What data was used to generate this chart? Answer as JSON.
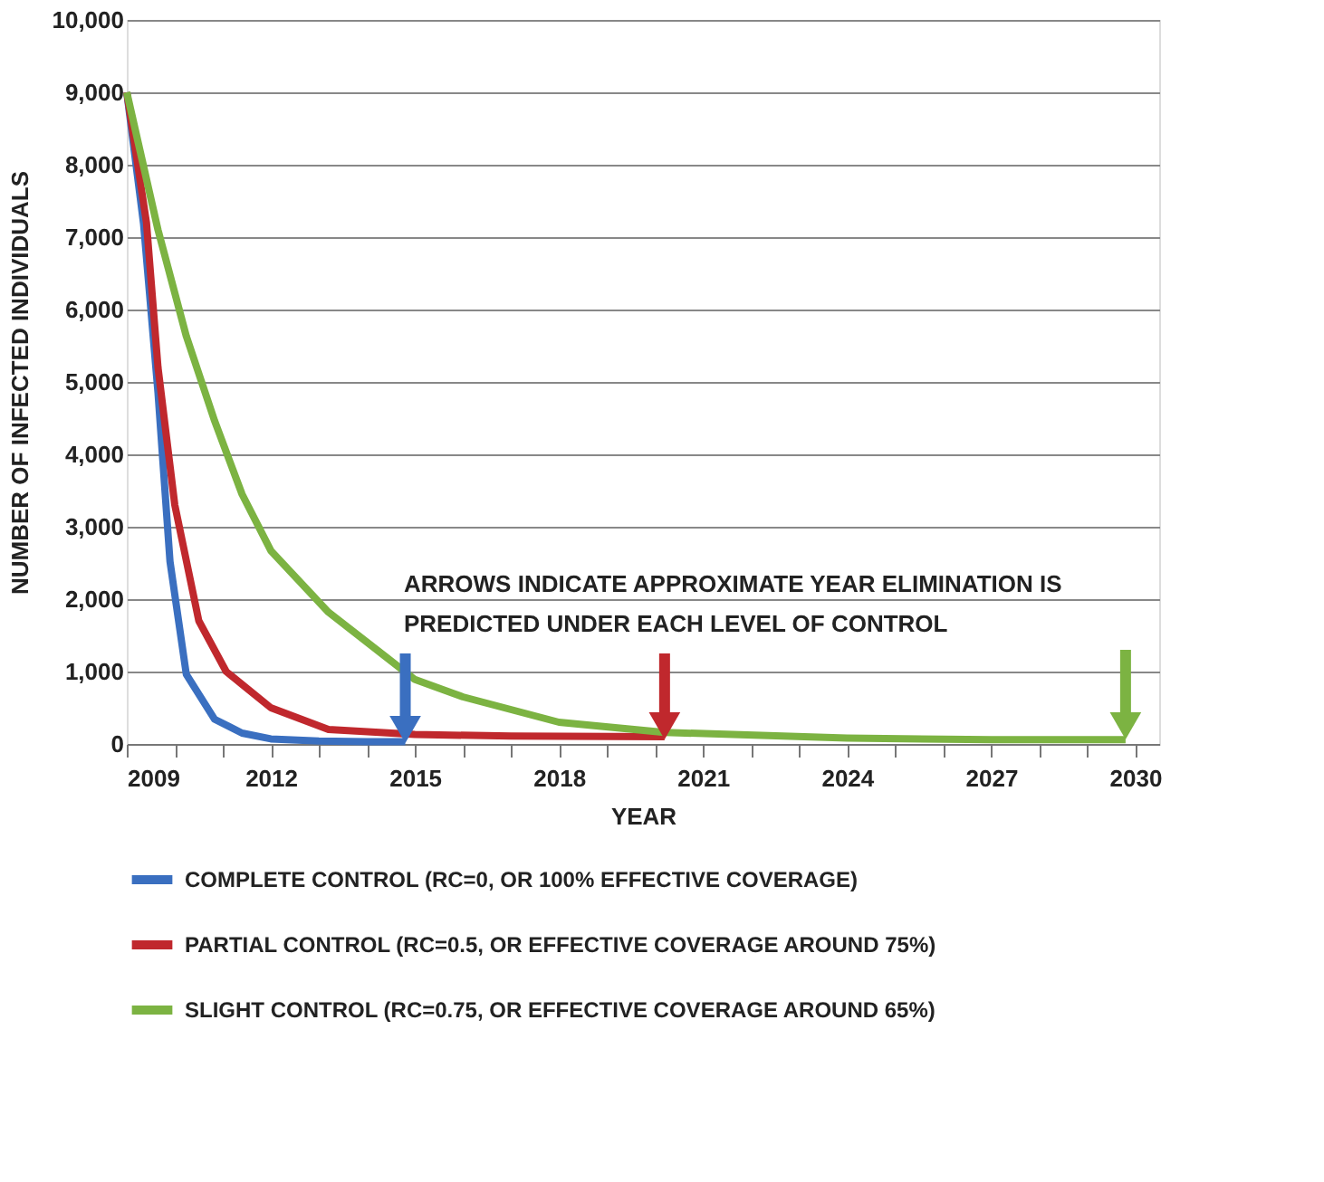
{
  "chart_data": {
    "type": "line",
    "xlabel": "YEAR",
    "ylabel": "NUMBER OF INFECTED INDIVIDUALS",
    "xlim": [
      2009,
      2030.5
    ],
    "ylim": [
      0,
      10000
    ],
    "xticks": [
      2009,
      {
        "value": 2010,
        "label": null
      },
      {
        "value": 2011,
        "label": null
      },
      2012,
      {
        "value": 2013,
        "label": null
      },
      {
        "value": 2014,
        "label": null
      },
      2015,
      {
        "value": 2016,
        "label": null
      },
      {
        "value": 2017,
        "label": null
      },
      2018,
      {
        "value": 2019,
        "label": null
      },
      {
        "value": 2020,
        "label": null
      },
      2021,
      {
        "value": 2022,
        "label": null
      },
      {
        "value": 2023,
        "label": null
      },
      2024,
      {
        "value": 2025,
        "label": null
      },
      {
        "value": 2026,
        "label": null
      },
      2027,
      {
        "value": 2028,
        "label": null
      },
      {
        "value": 2029,
        "label": null
      },
      2030
    ],
    "yticks": [
      {
        "value": 0,
        "label": "0"
      },
      {
        "value": 1000,
        "label": "1,000"
      },
      {
        "value": 2000,
        "label": "2,000"
      },
      {
        "value": 3000,
        "label": "3,000"
      },
      {
        "value": 4000,
        "label": "4,000"
      },
      {
        "value": 5000,
        "label": "5,000"
      },
      {
        "value": 6000,
        "label": "6,000"
      },
      {
        "value": 7000,
        "label": "7,000"
      },
      {
        "value": 8000,
        "label": "8,000"
      },
      {
        "value": 9000,
        "label": "9,000"
      },
      {
        "value": 10000,
        "label": "10,000"
      }
    ],
    "grid": "y",
    "legend": "bottom",
    "line_style": "solid",
    "annotations": [
      "ARROWS INDICATE APPROXIMATE YEAR ELIMINATION IS",
      "PREDICTED UNDER EACH LEVEL OF CONTROL"
    ],
    "series": [
      {
        "name": "COMPLETE CONTROL (RC=0, OR 100% EFFECTIVE COVERAGE)",
        "color": "#3a6fc0",
        "x": [
          2009,
          2009.35,
          2009.65,
          2009.9,
          2010.24,
          2010.83,
          2011.4,
          2012,
          2013,
          2014,
          2014.8
        ],
        "values": [
          9000,
          7180,
          4850,
          2520,
          960,
          340,
          150,
          70,
          40,
          30,
          30
        ]
      },
      {
        "name": "PARTIAL CONTROL (RC=0.5, OR EFFECTIVE COVERAGE AROUND 75%)",
        "color": "#c0282d",
        "x": [
          2009,
          2009.41,
          2009.65,
          2010,
          2010.5,
          2011.07,
          2012,
          2013.2,
          2015,
          2017,
          2020.2
        ],
        "values": [
          9000,
          7200,
          5200,
          3300,
          1700,
          1000,
          500,
          200,
          130,
          110,
          100
        ]
      },
      {
        "name": "SLIGHT CONTROL (RC=0.75, OR EFFECTIVE COVERAGE AROUND 65%)",
        "color": "#7cb342",
        "x": [
          2009,
          2009.65,
          2010.24,
          2010.83,
          2011.4,
          2012,
          2013.2,
          2014.4,
          2015,
          2016,
          2018,
          2020.2,
          2024,
          2027,
          2029.8
        ],
        "values": [
          9000,
          7100,
          5630,
          4460,
          3450,
          2670,
          1820,
          1200,
          890,
          650,
          300,
          160,
          80,
          60,
          60
        ]
      },
      {
        "type": "scatter",
        "marker": "triangle",
        "color": "#3a6fc0",
        "x": [
          2014.8
        ],
        "values": [
          200
        ],
        "errors": [
          [
            200,
            1250
          ]
        ]
      },
      {
        "type": "scatter",
        "marker": "triangle",
        "color": "#c0282d",
        "x": [
          2020.2
        ],
        "values": [
          250
        ],
        "errors": [
          [
            250,
            1250
          ]
        ]
      },
      {
        "type": "scatter",
        "marker": "triangle",
        "color": "#7cb342",
        "x": [
          2029.8
        ],
        "values": [
          250
        ],
        "errors": [
          [
            250,
            1300
          ]
        ]
      }
    ]
  }
}
